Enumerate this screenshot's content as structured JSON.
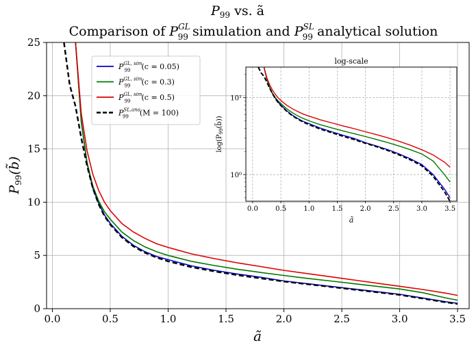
{
  "chart_data": {
    "type": "line",
    "title": "P_99 vs. ã",
    "title_main": "P",
    "title_sub": "99",
    "title_vs": " vs. ã",
    "subtitle_parts": [
      "Comparison of ",
      "P",
      "GL",
      "99",
      " simulation and ",
      "P",
      "SL",
      "99",
      " analytical solution"
    ],
    "xlabel": "ã",
    "ylabel": "P99(b̃)",
    "xlim": [
      -0.05,
      3.6
    ],
    "ylim": [
      0,
      25
    ],
    "xticks": [
      "0.0",
      "0.5",
      "1.0",
      "1.5",
      "2.0",
      "2.5",
      "3.0",
      "3.5"
    ],
    "yticks": [
      "0",
      "5",
      "10",
      "15",
      "20",
      "25"
    ],
    "grid": true,
    "legend_position": "upper-left",
    "x": [
      0.05,
      0.1,
      0.15,
      0.2,
      0.25,
      0.3,
      0.35,
      0.4,
      0.45,
      0.5,
      0.6,
      0.7,
      0.8,
      0.9,
      1.0,
      1.2,
      1.4,
      1.6,
      1.8,
      2.0,
      2.2,
      2.4,
      2.6,
      2.8,
      3.0,
      3.2,
      3.4,
      3.5
    ],
    "series": [
      {
        "name": "P99^{GL,sim} (c = 0.05)",
        "legend_main": "P",
        "legend_sup": "GL, sim",
        "legend_sub": "99",
        "legend_param": "(c = 0.05)",
        "color": "#0000cc",
        "dash": "solid",
        "x_start": 0.2,
        "values": [
          null,
          null,
          null,
          25.0,
          17.5,
          13.6,
          11.3,
          9.9,
          8.8,
          8.0,
          6.8,
          5.95,
          5.35,
          4.9,
          4.6,
          4.02,
          3.6,
          3.25,
          2.95,
          2.6,
          2.35,
          2.1,
          1.85,
          1.6,
          1.35,
          1.0,
          0.65,
          0.5
        ]
      },
      {
        "name": "P99^{GL,sim} (c = 0.3)",
        "legend_main": "P",
        "legend_sup": "GL, sim",
        "legend_sub": "99",
        "legend_param": "(c = 0.3)",
        "color": "#007700",
        "dash": "solid",
        "x_start": 0.2,
        "values": [
          null,
          null,
          null,
          25.0,
          17.6,
          13.7,
          11.5,
          10.1,
          9.1,
          8.4,
          7.2,
          6.4,
          5.8,
          5.35,
          5.0,
          4.45,
          4.05,
          3.7,
          3.4,
          3.12,
          2.85,
          2.6,
          2.35,
          2.1,
          1.85,
          1.5,
          1.0,
          0.8
        ]
      },
      {
        "name": "P99^{GL,sim} (c = 0.5)",
        "legend_main": "P",
        "legend_sup": "GL, sim",
        "legend_sub": "99",
        "legend_param": "(c = 0.5)",
        "color": "#dd0000",
        "dash": "solid",
        "x_start": 0.2,
        "values": [
          null,
          null,
          null,
          25.0,
          18.3,
          14.8,
          12.6,
          11.1,
          10.0,
          9.2,
          8.0,
          7.2,
          6.6,
          6.1,
          5.75,
          5.15,
          4.7,
          4.3,
          3.95,
          3.6,
          3.3,
          3.0,
          2.7,
          2.4,
          2.1,
          1.8,
          1.45,
          1.25
        ]
      },
      {
        "name": "P99^{SL,ana} (M = 100)",
        "legend_main": "P",
        "legend_sup": "SL,ana",
        "legend_sub": "99",
        "legend_param": "(M = 100)",
        "color": "#000000",
        "dash": "dashed",
        "x_start": 0.1,
        "values": [
          null,
          25.0,
          21.0,
          19.0,
          16.0,
          13.4,
          11.3,
          9.8,
          8.7,
          7.9,
          6.7,
          5.85,
          5.25,
          4.8,
          4.45,
          3.9,
          3.5,
          3.15,
          2.85,
          2.55,
          2.3,
          2.05,
          1.8,
          1.55,
          1.3,
          0.95,
          0.6,
          0.45
        ]
      }
    ],
    "inset": {
      "title": "log-scale",
      "xlabel": "ã",
      "ylabel": "log(P99(b̃))",
      "scale": "log",
      "xticks": [
        "0.0",
        "0.5",
        "1.0",
        "1.5",
        "2.0",
        "2.5",
        "3.0",
        "3.5"
      ],
      "ytick_labels": [
        "10⁰",
        "10¹"
      ],
      "ylim": [
        0.45,
        25
      ],
      "grid": "dashed"
    }
  }
}
